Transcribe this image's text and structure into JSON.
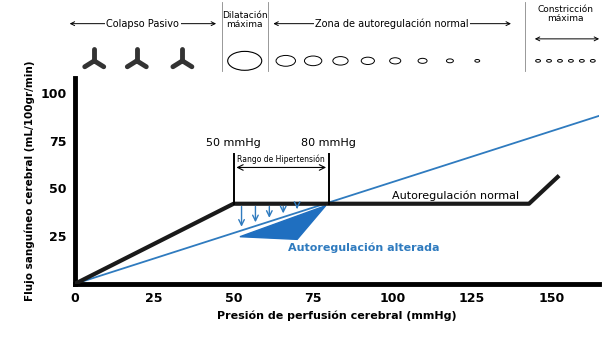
{
  "chart_data": {
    "type": "line",
    "x_label": "Presión de perfusión cerebral (mmHg)",
    "y_label": "Flujo sanguíneo cerebral (mL/100gr/min)",
    "xlim": [
      0,
      165
    ],
    "ylim": [
      0,
      108
    ],
    "xticks": [
      0,
      25,
      50,
      75,
      100,
      125,
      150
    ],
    "yticks": [
      25,
      50,
      75,
      100
    ],
    "series": [
      {
        "name": "Autoregulación normal",
        "color": "#1a1a1a",
        "x": [
          0,
          50,
          143,
          152
        ],
        "values": [
          0,
          42,
          42,
          56
        ]
      },
      {
        "name": "Autoregulación alterada",
        "color": "#2f7bbf",
        "x": [
          0,
          165
        ],
        "values": [
          0,
          88
        ]
      }
    ],
    "thresholds": [
      {
        "x": 50,
        "label": "50 mmHg"
      },
      {
        "x": 80,
        "label": "80 mmHg"
      }
    ],
    "range_label": "Rango de Hipertensión",
    "zones": [
      "Colapso Pasivo",
      "Dilatación máxima",
      "Zona de autoregulación normal",
      "Constricción máxima"
    ]
  }
}
